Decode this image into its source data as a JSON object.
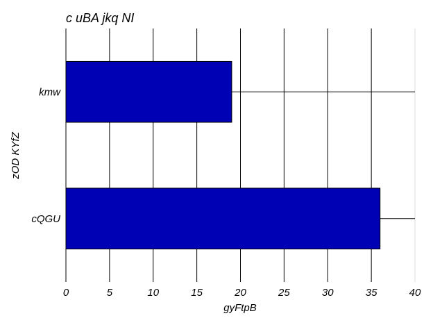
{
  "chart_data": {
    "type": "bar",
    "orientation": "horizontal",
    "title": "c uBA jkq NI",
    "xlabel": "gyFtpB",
    "ylabel": "zOD KYfZ",
    "categories": [
      "kmw",
      "cQGU"
    ],
    "values": [
      19,
      36
    ],
    "xlim": [
      0,
      40
    ],
    "xticks": [
      0,
      5,
      10,
      15,
      20,
      25,
      30,
      35,
      40
    ],
    "grid": "vertical",
    "bar_color": "#0000B4"
  }
}
